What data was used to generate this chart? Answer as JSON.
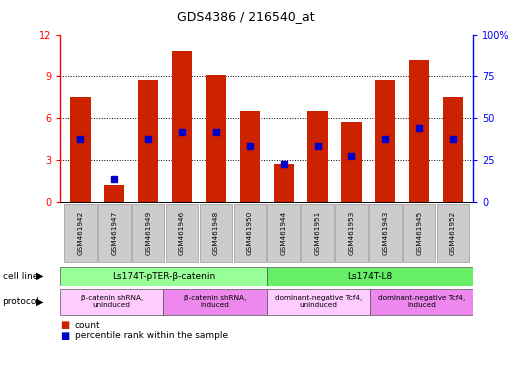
{
  "title": "GDS4386 / 216540_at",
  "samples": [
    "GSM461942",
    "GSM461947",
    "GSM461949",
    "GSM461946",
    "GSM461948",
    "GSM461950",
    "GSM461944",
    "GSM461951",
    "GSM461953",
    "GSM461943",
    "GSM461945",
    "GSM461952"
  ],
  "bar_heights": [
    7.5,
    1.2,
    8.7,
    10.8,
    9.1,
    6.5,
    2.7,
    6.5,
    5.7,
    8.7,
    10.2,
    7.5
  ],
  "blue_positions": [
    4.5,
    1.6,
    4.5,
    5.0,
    5.0,
    4.0,
    2.7,
    4.0,
    3.3,
    4.5,
    5.3,
    4.5
  ],
  "ylim_left": [
    0,
    12
  ],
  "ylim_right": [
    0,
    100
  ],
  "yticks_left": [
    0,
    3,
    6,
    9,
    12
  ],
  "yticks_right": [
    0,
    25,
    50,
    75,
    100
  ],
  "bar_color": "#cc2200",
  "blue_color": "#0000cc",
  "cell_line_groups": [
    {
      "label": "Ls174T-pTER-β-catenin",
      "start": 0,
      "end": 5,
      "color": "#99ff99"
    },
    {
      "label": "Ls174T-L8",
      "start": 6,
      "end": 11,
      "color": "#66ee66"
    }
  ],
  "protocol_groups": [
    {
      "label": "β-catenin shRNA,\nuninduced",
      "start": 0,
      "end": 2,
      "color": "#ffccff"
    },
    {
      "label": "β-catenin shRNA,\ninduced",
      "start": 3,
      "end": 5,
      "color": "#ee88ee"
    },
    {
      "label": "dominant-negative Tcf4,\nuninduced",
      "start": 6,
      "end": 8,
      "color": "#ffccff"
    },
    {
      "label": "dominant-negative Tcf4,\ninduced",
      "start": 9,
      "end": 11,
      "color": "#ee88ee"
    }
  ],
  "legend_count_color": "#cc2200",
  "legend_pct_color": "#0000cc",
  "tick_label_bg": "#cccccc"
}
